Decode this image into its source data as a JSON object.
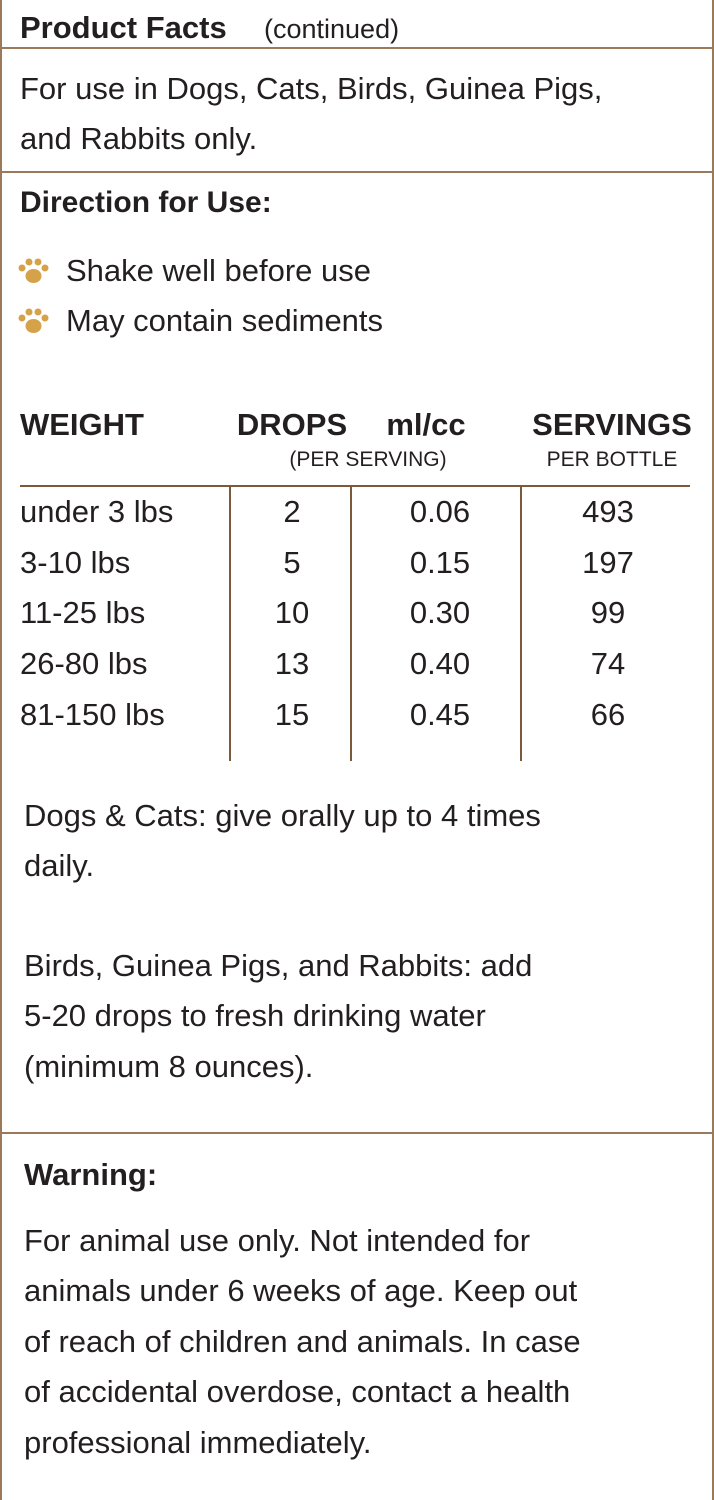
{
  "header": {
    "title": "Product Facts",
    "subtitle": "(continued)"
  },
  "usage": {
    "lines": [
      "For use in Dogs, Cats, Birds, Guinea Pigs,",
      "and Rabbits only."
    ]
  },
  "directions": {
    "title": "Direction for Use:",
    "bullets": [
      "Shake well before use",
      "May contain sediments"
    ]
  },
  "table": {
    "columns": [
      {
        "label": "WEIGHT"
      },
      {
        "label": "DROPS",
        "note": "(PER SERVING)"
      },
      {
        "label": "ml/cc"
      },
      {
        "label": "SERVINGS",
        "note": "PER BOTTLE"
      }
    ],
    "rows": [
      [
        "under 3 lbs",
        "2",
        "0.06",
        "493"
      ],
      [
        "3-10 lbs",
        "5",
        "0.15",
        "197"
      ],
      [
        "11-25 lbs",
        "10",
        "0.30",
        "99"
      ],
      [
        "26-80 lbs",
        "13",
        "0.40",
        "74"
      ],
      [
        "81-150 lbs",
        "15",
        "0.45",
        "66"
      ]
    ]
  },
  "notes": [
    {
      "lines": [
        "Dogs & Cats: give orally up to 4 times",
        "daily."
      ]
    },
    {
      "lines": [
        "Birds, Guinea Pigs, and Rabbits: add",
        "5-20 drops to fresh drinking water",
        "(minimum 8 ounces)."
      ]
    }
  ],
  "warning": {
    "title": "Warning:",
    "lines": [
      "For animal use only. Not intended for",
      "animals under 6 weeks of age. Keep out",
      "of reach of children and animals. In case",
      "of accidental overdose, contact a health",
      "professional immediately."
    ]
  }
}
